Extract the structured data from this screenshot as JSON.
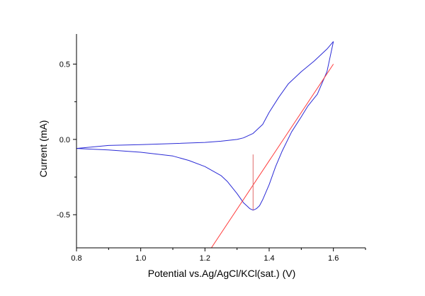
{
  "chart_data": {
    "type": "line",
    "title": "",
    "xlabel": "Potential vs.Ag/AgCl/KCl(sat.) (V)",
    "ylabel": "Current (mA)",
    "xlim": [
      0.8,
      1.7
    ],
    "ylim": [
      -0.72,
      0.7
    ],
    "x_ticks": [
      0.8,
      1.0,
      1.2,
      1.4,
      1.6
    ],
    "x_tick_labels": [
      "0.8",
      "1.0",
      "1.2",
      "1.4",
      "1.6"
    ],
    "y_ticks": [
      -0.5,
      0.0,
      0.5
    ],
    "y_tick_labels": [
      "-0.5",
      "0.0",
      "0.5"
    ],
    "grid": false,
    "legend": "none",
    "series": [
      {
        "color": "#2b2bd6",
        "style": "solid",
        "x": [
          0.8,
          0.9,
          1.0,
          1.1,
          1.2,
          1.25,
          1.3,
          1.32,
          1.35,
          1.38,
          1.4,
          1.43,
          1.46,
          1.5,
          1.54,
          1.58,
          1.6
        ],
        "y": [
          -0.06,
          -0.04,
          -0.035,
          -0.028,
          -0.02,
          -0.012,
          0.0,
          0.01,
          0.04,
          0.1,
          0.18,
          0.28,
          0.37,
          0.45,
          0.52,
          0.6,
          0.65
        ]
      },
      {
        "color": "#2b2bd6",
        "style": "solid",
        "x": [
          1.6,
          1.58,
          1.55,
          1.52,
          1.5,
          1.47,
          1.44,
          1.42,
          1.4,
          1.38,
          1.37,
          1.36,
          1.35,
          1.34,
          1.33,
          1.32,
          1.3,
          1.27,
          1.25,
          1.2,
          1.15,
          1.1,
          1.0,
          0.9,
          0.8
        ],
        "y": [
          0.65,
          0.45,
          0.3,
          0.22,
          0.15,
          0.05,
          -0.08,
          -0.18,
          -0.3,
          -0.4,
          -0.44,
          -0.46,
          -0.47,
          -0.46,
          -0.44,
          -0.42,
          -0.36,
          -0.28,
          -0.24,
          -0.18,
          -0.14,
          -0.11,
          -0.085,
          -0.07,
          -0.06
        ]
      },
      {
        "color": "#ff3b3b",
        "style": "solid",
        "x": [
          1.22,
          1.6
        ],
        "y": [
          -0.72,
          0.5
        ]
      },
      {
        "color": "#e06a6a",
        "style": "solid",
        "x": [
          1.35,
          1.35
        ],
        "y": [
          -0.1,
          -0.47
        ]
      }
    ]
  }
}
